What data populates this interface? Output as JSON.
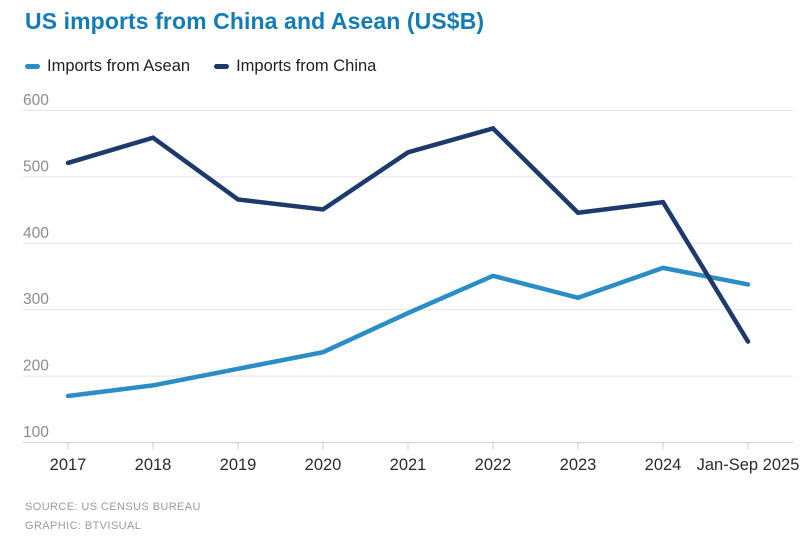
{
  "chart_data": {
    "type": "line",
    "title": "US imports from China and Asean (US$B)",
    "categories": [
      "2017",
      "2018",
      "2019",
      "2020",
      "2021",
      "2022",
      "2023",
      "2024",
      "Jan-Sep 2025"
    ],
    "series": [
      {
        "key": "asean",
        "name": "Imports from Asean",
        "color": "#2B8DC6",
        "values": [
          170,
          186,
          211,
          236,
          295,
          351,
          318,
          363,
          338
        ]
      },
      {
        "key": "china",
        "name": "Imports from China",
        "color": "#1E3A6D",
        "values": [
          521,
          559,
          466,
          451,
          537,
          573,
          446,
          462,
          252
        ]
      }
    ],
    "ylim": [
      100,
      600
    ],
    "yticks": [
      100,
      200,
      300,
      400,
      500,
      600
    ],
    "grid": "horizontal",
    "legend_position": "top-left",
    "colors": {
      "title": "#147CB5",
      "grid": "#e8e8e8",
      "baseline": "#d6d6d6",
      "axis_text": "#8c8c8c",
      "xaxis_text": "#2b2b2b"
    }
  },
  "footer": {
    "source": "SOURCE: US CENSUS BUREAU",
    "graphic": "GRAPHIC: BTVISUAL"
  }
}
